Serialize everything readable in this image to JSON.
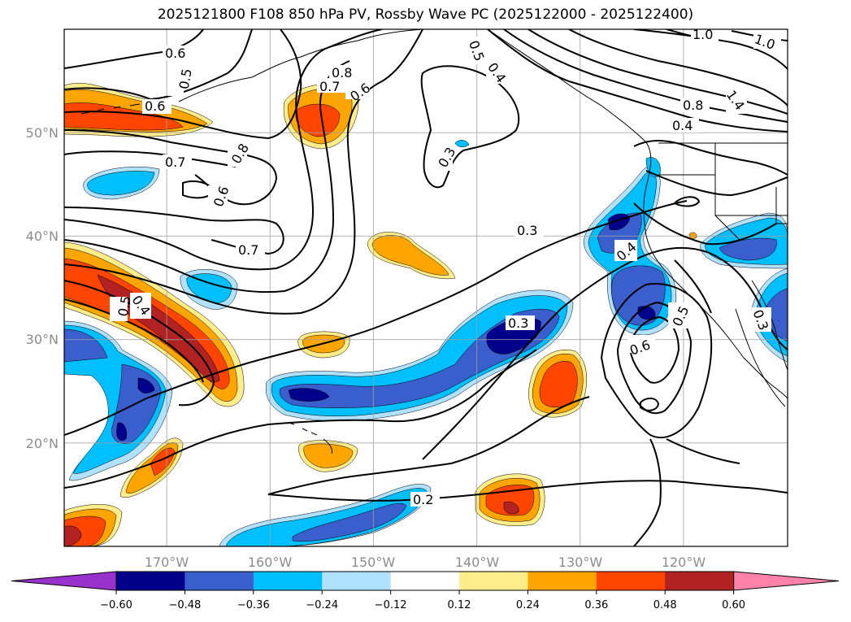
{
  "title": "2025121800 F108 850 hPa PV, Rossby Wave PC (2025122000 - 2025122400)",
  "map": {
    "lon_range": [
      -180,
      -110
    ],
    "lat_range": [
      10,
      60
    ],
    "lat_labels": [
      "50°N",
      "40°N",
      "30°N",
      "20°N"
    ],
    "lon_labels": [
      "170°W",
      "160°W",
      "150°W",
      "140°W",
      "130°W",
      "120°W"
    ]
  },
  "contour_labels": [
    "0.6",
    "0.5",
    "0.6",
    "0.7",
    "0.8",
    "0.7",
    "0.6",
    "0.7",
    "0.8",
    "0.6",
    "0.7",
    "0.5",
    "0.6",
    "0.3",
    "0.3",
    "0.4",
    "0.3",
    "0.5",
    "0.6",
    "0.5",
    "0.4",
    "0.2",
    "1.0",
    "1.0",
    "1.4",
    "0.8",
    "0.4"
  ],
  "colorbar": {
    "ticks": [
      "−0.60",
      "−0.48",
      "−0.36",
      "−0.24",
      "−0.12",
      "0.12",
      "0.24",
      "0.36",
      "0.48",
      "0.60"
    ],
    "colors": [
      "#9932cc",
      "#00008b",
      "#3a5fcd",
      "#00bfff",
      "#b0e2ff",
      "#ffffff",
      "#ffec8b",
      "#ffa500",
      "#ff4500",
      "#b22222",
      "#ff82ab"
    ]
  }
}
